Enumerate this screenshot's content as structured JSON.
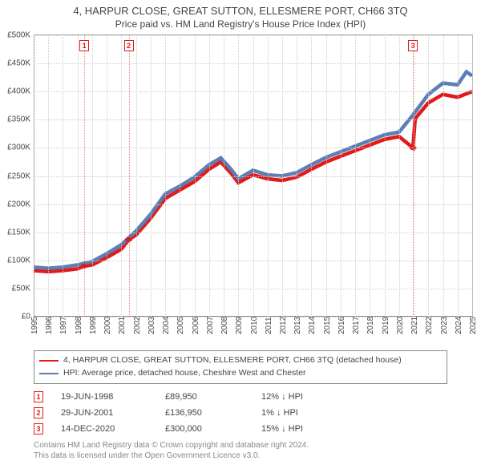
{
  "title": "4, HARPUR CLOSE, GREAT SUTTON, ELLESMERE PORT, CH66 3TQ",
  "subtitle": "Price paid vs. HM Land Registry's House Price Index (HPI)",
  "chart": {
    "type": "line",
    "background_color": "#ffffff",
    "grid_color": "#cccccc",
    "axis_color": "#888888",
    "text_color": "#444444",
    "ylim": [
      0,
      500000
    ],
    "ytick_step": 50000,
    "yticks": [
      "£0",
      "£50K",
      "£100K",
      "£150K",
      "£200K",
      "£250K",
      "£300K",
      "£350K",
      "£400K",
      "£450K",
      "£500K"
    ],
    "xlim": [
      1995,
      2025
    ],
    "xticks": [
      1995,
      1996,
      1997,
      1998,
      1999,
      2000,
      2001,
      2002,
      2003,
      2004,
      2005,
      2006,
      2007,
      2008,
      2009,
      2010,
      2011,
      2012,
      2013,
      2014,
      2015,
      2016,
      2017,
      2018,
      2019,
      2020,
      2021,
      2022,
      2023,
      2024,
      2025
    ],
    "tick_fontsize": 10,
    "title_fontsize": 13,
    "line_width": 1.6,
    "series": [
      {
        "name": "price_paid",
        "color": "#e21a1a",
        "points": [
          [
            1995.0,
            82000
          ],
          [
            1996.0,
            80000
          ],
          [
            1997.0,
            82000
          ],
          [
            1998.0,
            85000
          ],
          [
            1998.46,
            89950
          ],
          [
            1999.0,
            92000
          ],
          [
            2000.0,
            105000
          ],
          [
            2001.0,
            120000
          ],
          [
            2001.5,
            136950
          ],
          [
            2002.0,
            145000
          ],
          [
            2003.0,
            175000
          ],
          [
            2004.0,
            210000
          ],
          [
            2005.0,
            225000
          ],
          [
            2006.0,
            240000
          ],
          [
            2007.0,
            262000
          ],
          [
            2007.8,
            275000
          ],
          [
            2008.5,
            255000
          ],
          [
            2009.0,
            238000
          ],
          [
            2010.0,
            252000
          ],
          [
            2011.0,
            245000
          ],
          [
            2012.0,
            242000
          ],
          [
            2013.0,
            248000
          ],
          [
            2014.0,
            262000
          ],
          [
            2015.0,
            275000
          ],
          [
            2016.0,
            285000
          ],
          [
            2017.0,
            295000
          ],
          [
            2018.0,
            305000
          ],
          [
            2019.0,
            315000
          ],
          [
            2020.0,
            320000
          ],
          [
            2020.95,
            300000
          ],
          [
            2021.1,
            352000
          ],
          [
            2022.0,
            380000
          ],
          [
            2023.0,
            395000
          ],
          [
            2024.0,
            390000
          ],
          [
            2025.0,
            400000
          ]
        ]
      },
      {
        "name": "hpi",
        "color": "#5b7fb4",
        "points": [
          [
            1995.0,
            88000
          ],
          [
            1996.0,
            86000
          ],
          [
            1997.0,
            88000
          ],
          [
            1998.0,
            92000
          ],
          [
            1999.0,
            98000
          ],
          [
            2000.0,
            112000
          ],
          [
            2001.0,
            128000
          ],
          [
            2002.0,
            152000
          ],
          [
            2003.0,
            182000
          ],
          [
            2004.0,
            218000
          ],
          [
            2005.0,
            232000
          ],
          [
            2006.0,
            248000
          ],
          [
            2007.0,
            270000
          ],
          [
            2007.8,
            282000
          ],
          [
            2008.5,
            262000
          ],
          [
            2009.0,
            245000
          ],
          [
            2010.0,
            260000
          ],
          [
            2011.0,
            252000
          ],
          [
            2012.0,
            250000
          ],
          [
            2013.0,
            256000
          ],
          [
            2014.0,
            270000
          ],
          [
            2015.0,
            283000
          ],
          [
            2016.0,
            293000
          ],
          [
            2017.0,
            303000
          ],
          [
            2018.0,
            313000
          ],
          [
            2019.0,
            323000
          ],
          [
            2020.0,
            328000
          ],
          [
            2021.0,
            360000
          ],
          [
            2022.0,
            395000
          ],
          [
            2023.0,
            415000
          ],
          [
            2024.0,
            412000
          ],
          [
            2024.6,
            435000
          ],
          [
            2025.0,
            428000
          ]
        ]
      }
    ],
    "markers": [
      {
        "id": "1",
        "x": 1998.46,
        "y": 89950
      },
      {
        "id": "2",
        "x": 2001.5,
        "y": 136950
      },
      {
        "id": "3",
        "x": 2020.95,
        "y": 300000
      }
    ]
  },
  "legend": {
    "border_color": "#888888",
    "items": [
      {
        "color": "#e21a1a",
        "label": "4, HARPUR CLOSE, GREAT SUTTON, ELLESMERE PORT, CH66 3TQ (detached house)"
      },
      {
        "color": "#5b7fb4",
        "label": "HPI: Average price, detached house, Cheshire West and Chester"
      }
    ]
  },
  "events": [
    {
      "id": "1",
      "date": "19-JUN-1998",
      "price": "£89,950",
      "delta": "12% ↓ HPI"
    },
    {
      "id": "2",
      "date": "29-JUN-2001",
      "price": "£136,950",
      "delta": "1% ↓ HPI"
    },
    {
      "id": "3",
      "date": "14-DEC-2020",
      "price": "£300,000",
      "delta": "15% ↓ HPI"
    }
  ],
  "footer": {
    "line1": "Contains HM Land Registry data © Crown copyright and database right 2024.",
    "line2": "This data is licensed under the Open Government Licence v3.0."
  }
}
